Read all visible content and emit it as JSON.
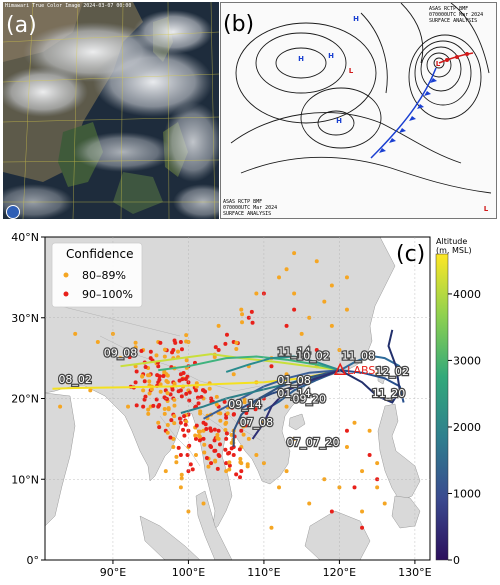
{
  "panels": {
    "a": {
      "letter": "(a)",
      "header": "Himawari True Color Image  2024-03-07 00:00",
      "credit_icon": "jma-logo-icon"
    },
    "b": {
      "letter": "(b)",
      "stamp_top": [
        "ASAS    RCTP   BMF",
        "070000UTC   Mar   2024",
        "SURFACE ANALYSIS"
      ],
      "stamp_bottom": [
        "ASAS    RCTP   BMF",
        "070000UTC   Mar   2024",
        "SURFACE ANALYSIS"
      ],
      "pressure_labels": [
        "H",
        "H",
        "H",
        "H",
        "L",
        "L",
        "L"
      ]
    },
    "c": {
      "letter": "(c)"
    }
  },
  "legend": {
    "title": "Confidence",
    "entries": [
      {
        "label": "80–89%",
        "color": "#f5a623"
      },
      {
        "label": "90–100%",
        "color": "#e8201a"
      }
    ]
  },
  "colorbar": {
    "title_line1": "Altitude",
    "title_line2": "(m, MSL)",
    "ticks": [
      "0",
      "1000",
      "2000",
      "3000",
      "4000"
    ],
    "colors": [
      "#2b0f5c",
      "#3a4a8f",
      "#2f7f8e",
      "#33a97a",
      "#8fd14f",
      "#fde725"
    ]
  },
  "station": {
    "label": "LABS",
    "color": "#e8201a"
  },
  "axes": {
    "lat_ticks": [
      "0°",
      "10°N",
      "20°N",
      "30°N",
      "40°N"
    ],
    "lon_ticks": [
      "90°E",
      "100°E",
      "110°E",
      "120°E",
      "130°E"
    ]
  },
  "trajectory_labels": [
    "09_08",
    "08_02",
    "11_14",
    "10_02",
    "11_08",
    "12_02",
    "11_20",
    "01_08",
    "01_14",
    "09_20",
    "09_14",
    "07_08",
    "07_07_20"
  ],
  "chart_data": {
    "type": "scatter",
    "xlabel": "",
    "ylabel": "",
    "xlim": [
      81,
      132
    ],
    "ylim": [
      0,
      40
    ],
    "series": [
      {
        "name": "80–89%",
        "color": "#f5a623",
        "points": [
          [
            94,
            26
          ],
          [
            96,
            27
          ],
          [
            98,
            25
          ],
          [
            100,
            27
          ],
          [
            104,
            29
          ],
          [
            107,
            31
          ],
          [
            109,
            33
          ],
          [
            112,
            35
          ],
          [
            114,
            38
          ],
          [
            118,
            32
          ],
          [
            119,
            34
          ],
          [
            121,
            35
          ],
          [
            120,
            26
          ],
          [
            116,
            30
          ],
          [
            113,
            36
          ],
          [
            111,
            25
          ],
          [
            97,
            11
          ],
          [
            98,
            15
          ],
          [
            100,
            14
          ],
          [
            99,
            9
          ],
          [
            101,
            13
          ],
          [
            105,
            11
          ],
          [
            107,
            12
          ],
          [
            105,
            17
          ],
          [
            102,
            16
          ],
          [
            92,
            19
          ],
          [
            87,
            21
          ],
          [
            84,
            22
          ],
          [
            83,
            19
          ],
          [
            85,
            28
          ],
          [
            88,
            27
          ],
          [
            90,
            28
          ],
          [
            91,
            25
          ],
          [
            93,
            24
          ],
          [
            94,
            21
          ],
          [
            95,
            19
          ],
          [
            96,
            17
          ],
          [
            98,
            14
          ],
          [
            100,
            21
          ],
          [
            102,
            20
          ],
          [
            103,
            18
          ],
          [
            104,
            15
          ],
          [
            106,
            16
          ],
          [
            107,
            14
          ],
          [
            108,
            15
          ],
          [
            109,
            13
          ],
          [
            110,
            12
          ],
          [
            113,
            11
          ],
          [
            112,
            9
          ],
          [
            111,
            4
          ],
          [
            102,
            7
          ],
          [
            100,
            6
          ],
          [
            124,
            16
          ],
          [
            125,
            12
          ],
          [
            123,
            11
          ],
          [
            125,
            9
          ],
          [
            126,
            7
          ],
          [
            123,
            6
          ],
          [
            120,
            9
          ],
          [
            121,
            14
          ],
          [
            118,
            10
          ],
          [
            116,
            7
          ],
          [
            122,
            17
          ],
          [
            125,
            23
          ],
          [
            117,
            24
          ],
          [
            115,
            22
          ],
          [
            113,
            23
          ],
          [
            113,
            19
          ],
          [
            114,
            15
          ],
          [
            110,
            17
          ],
          [
            109,
            22
          ],
          [
            106,
            23
          ],
          [
            108,
            24
          ],
          [
            114,
            33
          ],
          [
            117,
            37
          ],
          [
            115,
            28
          ],
          [
            119,
            29
          ],
          [
            121,
            31
          ]
        ]
      },
      {
        "name": "90–100%",
        "color": "#e8201a",
        "points": [
          [
            93,
            26
          ],
          [
            95,
            25
          ],
          [
            96,
            24
          ],
          [
            97,
            23
          ],
          [
            98,
            22
          ],
          [
            99,
            21
          ],
          [
            95,
            21
          ],
          [
            94,
            19
          ],
          [
            96,
            19
          ],
          [
            97,
            20
          ],
          [
            98,
            18
          ],
          [
            99,
            17
          ],
          [
            100,
            18
          ],
          [
            101,
            19
          ],
          [
            100,
            16
          ],
          [
            101,
            15
          ],
          [
            102,
            15
          ],
          [
            103,
            14
          ],
          [
            104,
            13
          ],
          [
            105,
            12
          ],
          [
            104,
            16
          ],
          [
            102,
            17
          ],
          [
            103,
            12
          ],
          [
            100,
            11
          ],
          [
            99,
            13
          ],
          [
            97,
            16
          ],
          [
            93,
            22
          ],
          [
            94,
            23
          ],
          [
            95,
            23
          ],
          [
            96,
            22
          ],
          [
            100,
            22
          ],
          [
            101,
            21
          ],
          [
            102,
            21
          ],
          [
            103,
            20
          ],
          [
            104,
            19
          ],
          [
            105,
            18
          ],
          [
            106,
            18
          ],
          [
            106,
            14
          ],
          [
            105,
            15
          ],
          [
            103,
            16
          ],
          [
            98,
            20
          ],
          [
            97,
            21
          ],
          [
            99,
            23
          ],
          [
            100,
            24
          ],
          [
            98,
            26
          ],
          [
            106,
            13
          ],
          [
            107,
            16
          ],
          [
            108,
            19
          ],
          [
            110,
            20
          ],
          [
            111,
            24
          ],
          [
            113,
            29
          ],
          [
            114,
            31
          ],
          [
            117,
            26
          ],
          [
            110,
            33
          ],
          [
            108,
            30
          ],
          [
            104,
            26
          ],
          [
            106,
            27
          ],
          [
            124,
            13
          ],
          [
            122,
            9
          ],
          [
            125,
            10
          ],
          [
            121,
            16
          ],
          [
            123,
            4
          ],
          [
            119,
            6
          ],
          [
            107,
            11
          ],
          [
            99,
            27
          ],
          [
            97,
            26
          ]
        ]
      }
    ],
    "station": {
      "lon": 120.1,
      "lat": 23.5
    },
    "trajectories": [
      {
        "label": "09_08",
        "color": "#c9df3b",
        "points": [
          [
            120.1,
            23.5
          ],
          [
            116,
            24
          ],
          [
            112,
            24.5
          ],
          [
            107,
            25
          ],
          [
            103,
            25.5
          ],
          [
            99,
            25
          ],
          [
            95,
            24.5
          ],
          [
            91,
            24
          ]
        ]
      },
      {
        "label": "08_02",
        "color": "#f4e11f",
        "points": [
          [
            120.1,
            23.5
          ],
          [
            115,
            22.5
          ],
          [
            110,
            22
          ],
          [
            104,
            21.8
          ],
          [
            98,
            21.5
          ],
          [
            92,
            21.4
          ],
          [
            85,
            21.3
          ],
          [
            82,
            21.2
          ]
        ]
      },
      {
        "label": "11_14",
        "color": "#3fb37e",
        "points": [
          [
            120.1,
            23.5
          ],
          [
            117,
            24.2
          ],
          [
            113,
            24.8
          ],
          [
            109,
            25.2
          ],
          [
            105,
            25
          ],
          [
            100,
            24
          ],
          [
            96,
            23.5
          ]
        ]
      },
      {
        "label": "10_02",
        "color": "#2a8c8e",
        "points": [
          [
            120.1,
            23.5
          ],
          [
            117,
            24.5
          ],
          [
            114,
            25.2
          ],
          [
            111,
            25
          ],
          [
            108,
            24.2
          ],
          [
            105,
            23.3
          ]
        ]
      },
      {
        "label": "11_08",
        "color": "#2f6b9a",
        "points": [
          [
            120.1,
            23.5
          ],
          [
            122,
            24.5
          ],
          [
            124,
            25.3
          ],
          [
            126,
            25
          ],
          [
            128,
            24
          ]
        ]
      },
      {
        "label": "12_02",
        "color": "#264e8c",
        "points": [
          [
            120.1,
            23.5
          ],
          [
            123,
            23.2
          ],
          [
            126,
            22.5
          ],
          [
            128,
            21.5
          ],
          [
            128.5,
            19.5
          ]
        ]
      },
      {
        "label": "11_20",
        "color": "#22306c",
        "points": [
          [
            120.1,
            23.5
          ],
          [
            123,
            22
          ],
          [
            125,
            20.3
          ],
          [
            127,
            19.5
          ],
          [
            128,
            21
          ],
          [
            127.5,
            24
          ],
          [
            126.5,
            26.5
          ],
          [
            127,
            28.5
          ]
        ]
      },
      {
        "label": "01_08",
        "color": "#3b5f98",
        "points": [
          [
            120.1,
            23.5
          ],
          [
            116,
            23.2
          ],
          [
            113,
            22.5
          ],
          [
            110,
            21.5
          ],
          [
            108,
            20.5
          ],
          [
            106,
            19.5
          ],
          [
            104,
            18.5
          ],
          [
            102,
            17.5
          ]
        ]
      },
      {
        "label": "01_14",
        "color": "#2b477e",
        "points": [
          [
            120.1,
            23.5
          ],
          [
            117,
            22.6
          ],
          [
            114,
            21.5
          ],
          [
            111,
            20.6
          ],
          [
            109,
            19.8
          ],
          [
            107,
            18.8
          ]
        ]
      },
      {
        "label": "09_20",
        "color": "#2d5c8e",
        "points": [
          [
            120.1,
            23.5
          ],
          [
            117,
            22.3
          ],
          [
            114,
            21
          ],
          [
            112,
            19.6
          ],
          [
            110,
            18.5
          ]
        ]
      },
      {
        "label": "09_14",
        "color": "#2c7f88",
        "points": [
          [
            120.1,
            23.5
          ],
          [
            117,
            22.8
          ],
          [
            113,
            21.8
          ],
          [
            109,
            20.9
          ],
          [
            105,
            20
          ],
          [
            102,
            19
          ],
          [
            99,
            18.2
          ]
        ]
      },
      {
        "label": "07_08",
        "color": "#30527f",
        "points": [
          [
            120.1,
            23.5
          ],
          [
            116,
            22.6
          ],
          [
            112,
            21.4
          ],
          [
            109,
            19.8
          ],
          [
            107,
            18
          ],
          [
            106,
            16
          ],
          [
            106,
            14
          ]
        ]
      },
      {
        "label": "07_07_20",
        "color": "#2e2f73",
        "points": [
          [
            120.1,
            23.5
          ],
          [
            117,
            22.5
          ],
          [
            113,
            21
          ],
          [
            111,
            19
          ],
          [
            110,
            17
          ],
          [
            108.5,
            15
          ]
        ]
      }
    ]
  }
}
